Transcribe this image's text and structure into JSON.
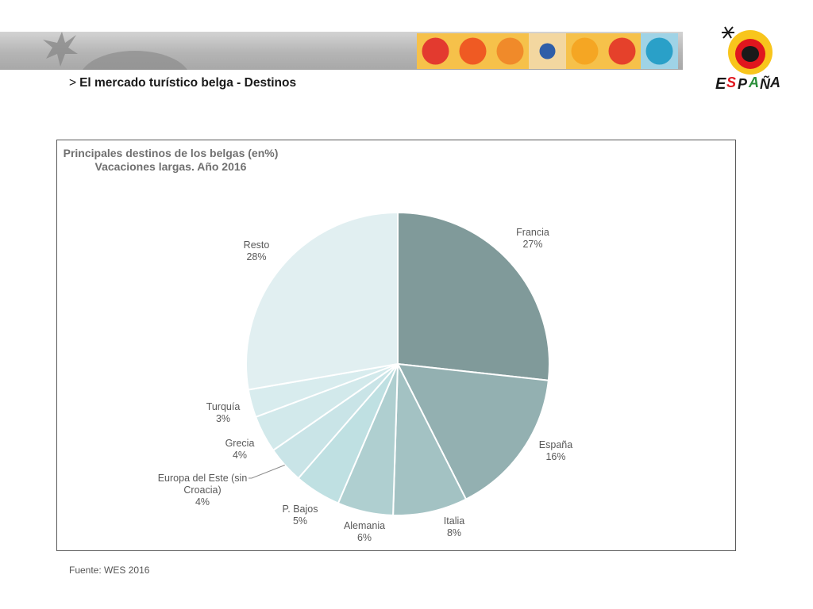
{
  "header": {
    "arrow": ">",
    "title": "El mercado turístico belga - Destinos",
    "logo_alt_icon": "espana-brand-logo"
  },
  "colors": {
    "banner": "#b8b8b8",
    "tiles": [
      "#e33a2f",
      "#ef5a23",
      "#f08a2a",
      "#2f5ea8",
      "#f5a623",
      "#e5412b",
      "#2aa0c8"
    ]
  },
  "chart_data": {
    "type": "pie",
    "title": "Principales destinos de los belgas (en%)",
    "subtitle": "Vacaciones largas. Año 2016",
    "start_angle_deg": 0,
    "direction": "clockwise",
    "slices": [
      {
        "label_lines": [
          "Francia"
        ],
        "value": 27,
        "value_text": "27%",
        "color": "#809a9a"
      },
      {
        "label_lines": [
          "España"
        ],
        "value": 16,
        "value_text": "16%",
        "color": "#93b0b1"
      },
      {
        "label_lines": [
          "Italia"
        ],
        "value": 8,
        "value_text": "8%",
        "color": "#a3c2c3"
      },
      {
        "label_lines": [
          "Alemania"
        ],
        "value": 6,
        "value_text": "6%",
        "color": "#afcfd0"
      },
      {
        "label_lines": [
          "P. Bajos"
        ],
        "value": 5,
        "value_text": "5%",
        "color": "#bfe0e2"
      },
      {
        "label_lines": [
          "Europa del Este (sin",
          "Croacia)"
        ],
        "value": 4,
        "value_text": "4%",
        "color": "#c9e4e7"
      },
      {
        "label_lines": [
          "Grecia"
        ],
        "value": 4,
        "value_text": "4%",
        "color": "#d2e9eb"
      },
      {
        "label_lines": [
          "Turquía"
        ],
        "value": 3,
        "value_text": "3%",
        "color": "#d8ecee"
      },
      {
        "label_lines": [
          "Resto"
        ],
        "value": 28,
        "value_text": "28%",
        "color": "#e1eff1"
      }
    ],
    "legend": "none",
    "data_labels": "outside"
  },
  "footer": {
    "source_label": "Fuente:",
    "source_value": "WES 2016"
  }
}
